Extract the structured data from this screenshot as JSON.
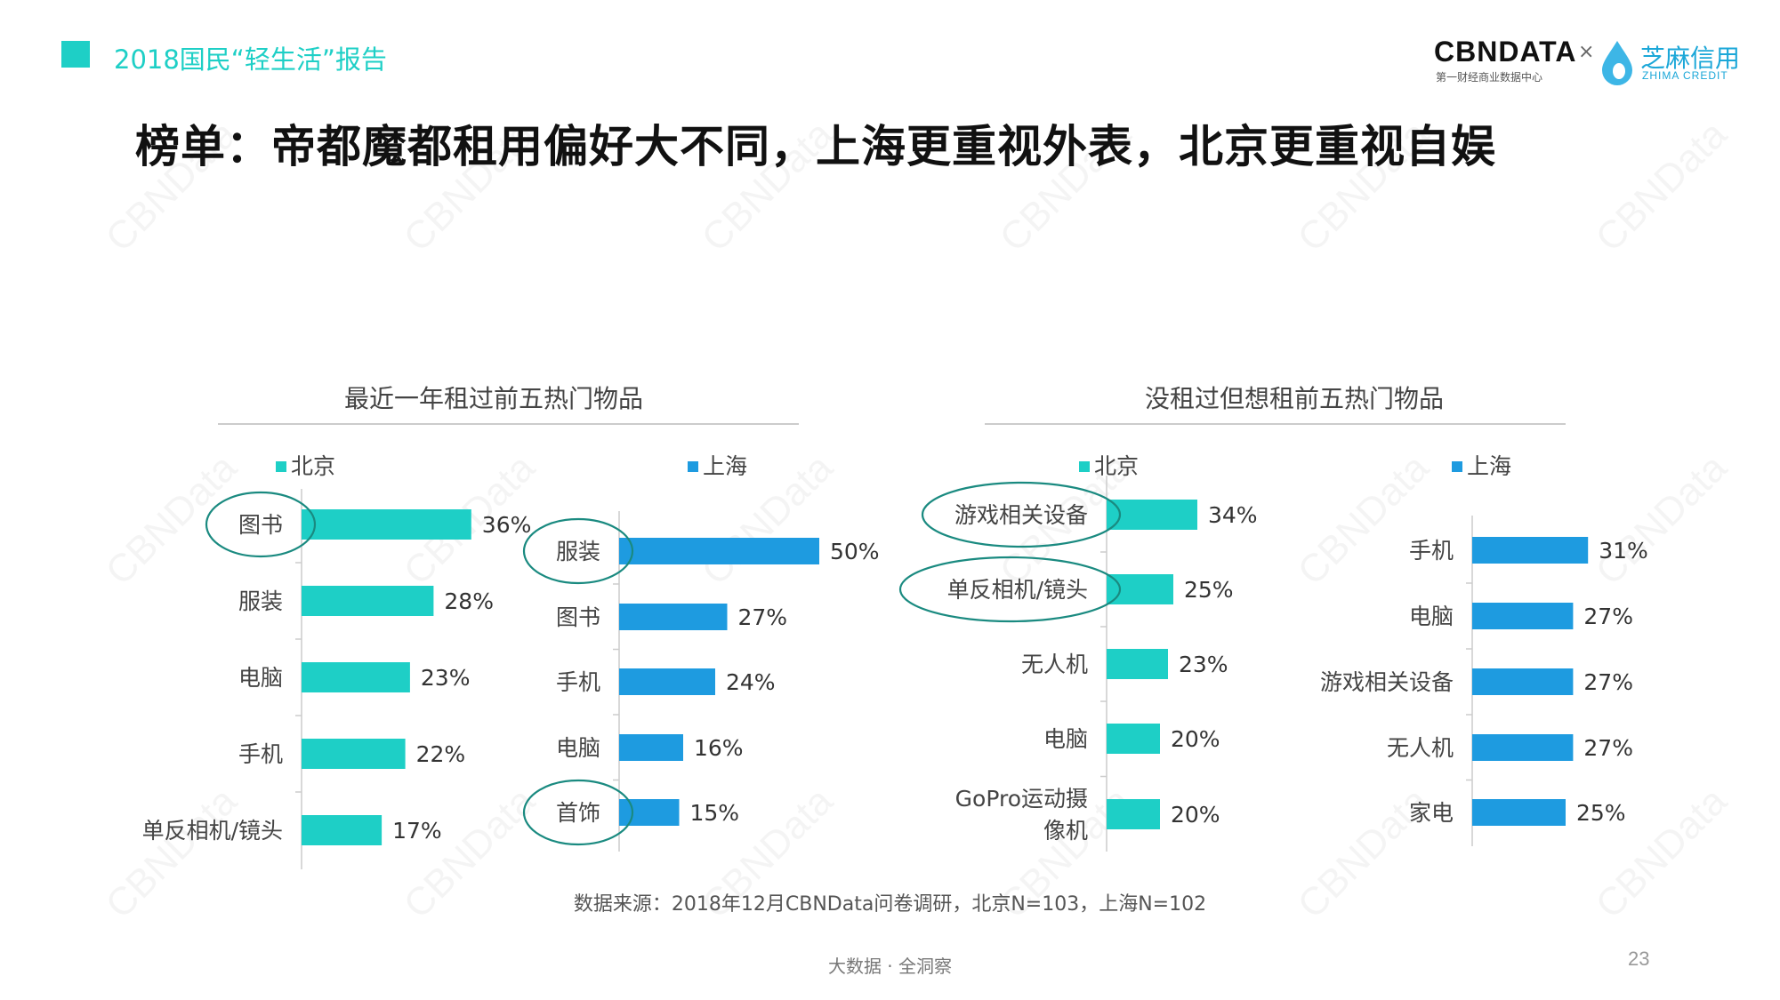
{
  "header": {
    "report_title": "2018国民“轻生活”报告",
    "main_title": "榜单：帝都魔都租用偏好大不同，上海更重视外表，北京更重视自娱"
  },
  "logo": {
    "cbn": "CBNDATA",
    "cbn_sub": "第一财经商业数据中心",
    "times": "×",
    "zhima": "芝麻信用",
    "zhima_sub": "ZHIMA CREDIT"
  },
  "watermark": "CBNData",
  "colors": {
    "beijing": "#1ECFC6",
    "shanghai": "#1E9BE0",
    "circle": "#1A8A80"
  },
  "groups": [
    {
      "title": "最近一年租过前五热门物品"
    },
    {
      "title": "没租过但想租前五热门物品"
    }
  ],
  "chart_data": [
    {
      "type": "bar",
      "orientation": "horizontal",
      "group": 0,
      "legend": "北京",
      "color": "#1ECFC6",
      "categories": [
        "图书",
        "服装",
        "电脑",
        "手机",
        "单反相机/镜头"
      ],
      "values": [
        36,
        28,
        23,
        22,
        17
      ],
      "labels": [
        "36%",
        "28%",
        "23%",
        "22%",
        "17%"
      ],
      "circled": [
        "图书"
      ],
      "xlim": [
        0,
        55
      ]
    },
    {
      "type": "bar",
      "orientation": "horizontal",
      "group": 0,
      "legend": "上海",
      "color": "#1E9BE0",
      "categories": [
        "服装",
        "图书",
        "手机",
        "电脑",
        "首饰"
      ],
      "values": [
        50,
        27,
        24,
        16,
        15
      ],
      "labels": [
        "50%",
        "27%",
        "24%",
        "16%",
        "15%"
      ],
      "circled": [
        "服装",
        "首饰"
      ],
      "xlim": [
        0,
        55
      ]
    },
    {
      "type": "bar",
      "orientation": "horizontal",
      "group": 1,
      "legend": "北京",
      "color": "#1ECFC6",
      "categories": [
        "游戏相关设备",
        "单反相机/镜头",
        "无人机",
        "电脑",
        "GoPro运动摄像机"
      ],
      "category_lines": [
        [
          "游戏相关设备"
        ],
        [
          "单反相机/镜头"
        ],
        [
          "无人机"
        ],
        [
          "电脑"
        ],
        [
          "GoPro运动摄",
          "像机"
        ]
      ],
      "values": [
        34,
        25,
        23,
        20,
        20
      ],
      "labels": [
        "34%",
        "25%",
        "23%",
        "20%",
        "20%"
      ],
      "circled": [
        "游戏相关设备",
        "单反相机/镜头"
      ],
      "xlim": [
        0,
        40
      ]
    },
    {
      "type": "bar",
      "orientation": "horizontal",
      "group": 1,
      "legend": "上海",
      "color": "#1E9BE0",
      "categories": [
        "手机",
        "电脑",
        "游戏相关设备",
        "无人机",
        "家电"
      ],
      "values": [
        31,
        27,
        27,
        27,
        25
      ],
      "labels": [
        "31%",
        "27%",
        "27%",
        "27%",
        "25%"
      ],
      "circled": [],
      "xlim": [
        0,
        40
      ]
    }
  ],
  "source_note": "数据来源：2018年12月CBNData问卷调研，北京N=103，上海N=102",
  "footer_text": "大数据 · 全洞察",
  "page_number": "23"
}
